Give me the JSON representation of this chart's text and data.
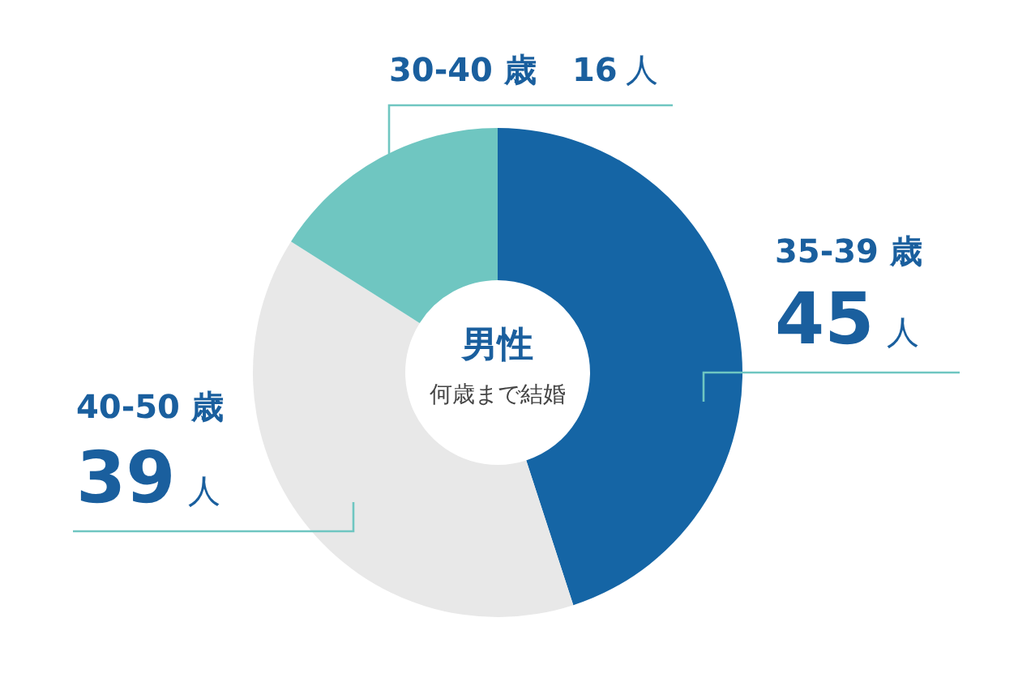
{
  "chart_data": {
    "type": "donut",
    "title": "男性",
    "subtitle": "何歳まで結婚",
    "categories": [
      "35-39 歳",
      "40-50 歳",
      "30-40 歳"
    ],
    "values": [
      45,
      39,
      16
    ],
    "value_labels": [
      "45 人",
      "39 人",
      "16 人"
    ],
    "colors": [
      "#1565a5",
      "#e8e8e8",
      "#6fc6c1"
    ]
  }
}
